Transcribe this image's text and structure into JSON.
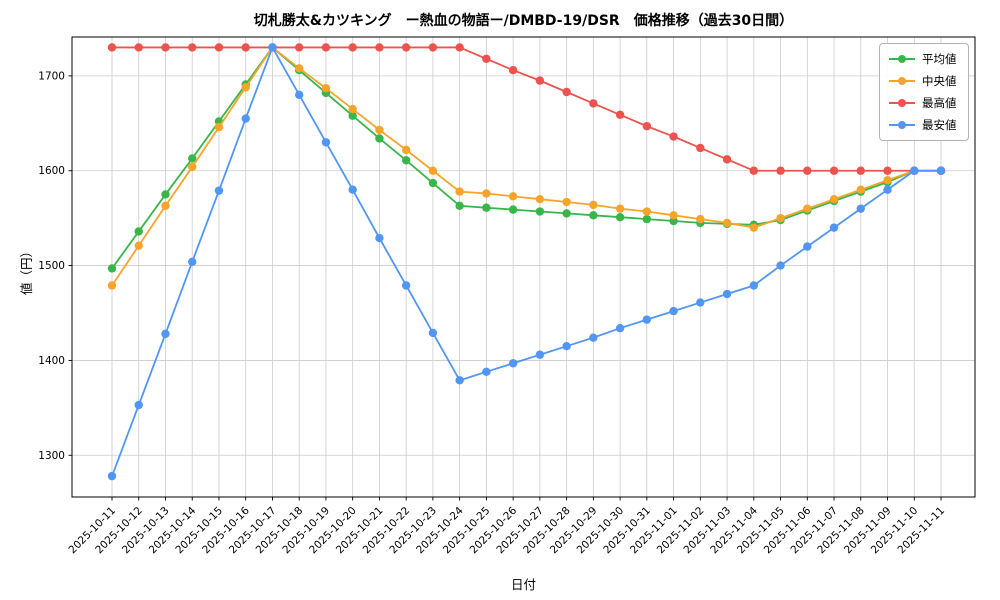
{
  "chart_data": {
    "type": "line",
    "title": "切札勝太&カツキング　ー熱血の物語ー/DMBD-19/DSR　価格推移（過去30日間）",
    "xlabel": "日付",
    "ylabel": "値（円）",
    "grid": true,
    "legend_position": "upper right",
    "ylim": [
      1256,
      1741
    ],
    "yticks": [
      1300,
      1400,
      1500,
      1600,
      1700
    ],
    "x": [
      "2025-10-11",
      "2025-10-12",
      "2025-10-13",
      "2025-10-14",
      "2025-10-15",
      "2025-10-16",
      "2025-10-17",
      "2025-10-18",
      "2025-10-19",
      "2025-10-20",
      "2025-10-21",
      "2025-10-22",
      "2025-10-23",
      "2025-10-24",
      "2025-10-25",
      "2025-10-26",
      "2025-10-27",
      "2025-10-28",
      "2025-10-29",
      "2025-10-30",
      "2025-10-31",
      "2025-11-01",
      "2025-11-02",
      "2025-11-03",
      "2025-11-04",
      "2025-11-05",
      "2025-11-06",
      "2025-11-07",
      "2025-11-08",
      "2025-11-09",
      "2025-11-10",
      "2025-11-11"
    ],
    "series": [
      {
        "key": "average",
        "name": "平均値",
        "color": "#3ab54a",
        "values": [
          1497,
          1536,
          1575,
          1613,
          1652,
          1691,
          1730,
          1706,
          1682,
          1658,
          1634,
          1611,
          1587,
          1563,
          1561,
          1559,
          1557,
          1555,
          1553,
          1551,
          1549,
          1547,
          1545,
          1544,
          1543,
          1548,
          1558,
          1568,
          1578,
          1588,
          1600,
          1600
        ]
      },
      {
        "key": "median",
        "name": "中央値",
        "color": "#f6a52a",
        "values": [
          1479,
          1521,
          1563,
          1604,
          1646,
          1688,
          1730,
          1708,
          1687,
          1665,
          1643,
          1622,
          1600,
          1578,
          1576,
          1573,
          1570,
          1567,
          1564,
          1560,
          1557,
          1553,
          1549,
          1545,
          1540,
          1550,
          1560,
          1570,
          1580,
          1590,
          1600,
          1600
        ]
      },
      {
        "key": "highest",
        "name": "最高値",
        "color": "#ec534e",
        "values": [
          1730,
          1730,
          1730,
          1730,
          1730,
          1730,
          1730,
          1730,
          1730,
          1730,
          1730,
          1730,
          1730,
          1730,
          1718,
          1706,
          1695,
          1683,
          1671,
          1659,
          1647,
          1636,
          1624,
          1612,
          1600,
          1600,
          1600,
          1600,
          1600,
          1600,
          1600,
          1600
        ]
      },
      {
        "key": "lowest",
        "name": "最安値",
        "color": "#5196f2",
        "values": [
          1278,
          1353,
          1428,
          1504,
          1579,
          1655,
          1730,
          1680,
          1630,
          1580,
          1529,
          1479,
          1429,
          1379,
          1388,
          1397,
          1406,
          1415,
          1424,
          1434,
          1443,
          1452,
          1461,
          1470,
          1479,
          1500,
          1520,
          1540,
          1560,
          1580,
          1600,
          1600
        ]
      }
    ]
  }
}
